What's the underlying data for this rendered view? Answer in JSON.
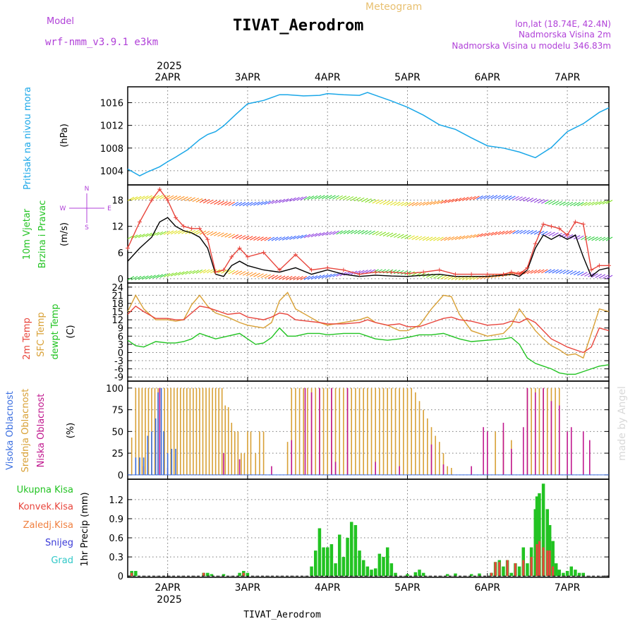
{
  "header": {
    "model_label": "Model",
    "model_name": "wrf-nmm_v3.9.1  e3km",
    "title": "TIVAT_Aerodrom",
    "subtitle": "Meteogram",
    "coords": "lon,lat (18.74E, 42.4N)",
    "elevation": "Nadmorska Visina 2m",
    "model_elevation": "Nadmorska Visina u modelu 346.83m",
    "footer_station": "TIVAT_Aerodrom",
    "watermark": "made by Angel"
  },
  "time_axis": {
    "year": "2025",
    "days": [
      "2APR",
      "3APR",
      "4APR",
      "5APR",
      "6APR",
      "7APR"
    ],
    "range_days": [
      -0.5,
      5.52
    ]
  },
  "colors": {
    "pressure": "#1aa7e8",
    "temp2m": "#e8453c",
    "sfc": "#d8a035",
    "dewpt": "#22c322",
    "precip_total": "#22c322",
    "precip_conv": "#e8453c",
    "cloud_high": "#3b6fe0",
    "cloud_mid": "#d8a035",
    "cloud_low": "#c0178e",
    "wind_speed": "#000000",
    "wind_gust": "#e8453c",
    "purple_text": "#b040d8",
    "meteogram_text": "#e8c070"
  },
  "chart_data": [
    {
      "id": "pressure",
      "type": "line",
      "ylabel_desc": "Pritisak na nivou mora",
      "ylabel_unit": "(hPa)",
      "yticks": [
        1004,
        1008,
        1012,
        1016
      ],
      "ylim": [
        1001.5,
        1018.8
      ],
      "x": [
        -0.5,
        -0.35,
        -0.25,
        -0.1,
        0,
        0.1,
        0.25,
        0.4,
        0.5,
        0.6,
        0.7,
        0.85,
        1,
        1.2,
        1.4,
        1.5,
        1.7,
        1.9,
        2,
        2.2,
        2.4,
        2.5,
        2.6,
        2.8,
        3,
        3.2,
        3.4,
        3.6,
        3.8,
        4,
        4.2,
        4.4,
        4.6,
        4.8,
        5,
        5.2,
        5.4,
        5.52
      ],
      "values": [
        1004.3,
        1003.1,
        1003.8,
        1004.7,
        1005.6,
        1006.4,
        1007.7,
        1009.5,
        1010.4,
        1010.9,
        1011.9,
        1013.9,
        1015.8,
        1016.4,
        1017.4,
        1017.4,
        1017.2,
        1017.3,
        1017.6,
        1017.4,
        1017.3,
        1017.8,
        1017.3,
        1016.3,
        1015.2,
        1013.8,
        1012.1,
        1011.3,
        1009.8,
        1008.4,
        1008,
        1007.3,
        1006.3,
        1008.1,
        1010.9,
        1012.3,
        1014.3,
        1015.1
      ]
    },
    {
      "id": "wind",
      "type": "line",
      "ylabel_desc1": "10m Vjetar",
      "ylabel_desc2": "Brzina i Pravac",
      "ylabel_unit": "(m/s)",
      "yticks": [
        0,
        6,
        12,
        18
      ],
      "ylim": [
        -1,
        21.5
      ],
      "compass": {
        "north": "N",
        "east": "E",
        "west": "W",
        "south": "S"
      },
      "x": [
        -0.5,
        -0.35,
        -0.2,
        -0.1,
        0,
        0.1,
        0.2,
        0.3,
        0.4,
        0.5,
        0.6,
        0.7,
        0.8,
        0.9,
        1,
        1.2,
        1.4,
        1.6,
        1.8,
        2,
        2.2,
        2.4,
        2.6,
        2.8,
        3,
        3.2,
        3.4,
        3.6,
        3.8,
        4,
        4.2,
        4.3,
        4.4,
        4.5,
        4.6,
        4.7,
        4.8,
        4.9,
        5,
        5.1,
        5.2,
        5.3,
        5.4,
        5.52
      ],
      "speed": [
        4,
        7,
        9.5,
        13,
        14,
        12,
        11,
        10.5,
        9.5,
        7,
        1,
        0.5,
        3,
        4,
        3,
        2,
        1.5,
        2.5,
        1,
        2,
        1,
        0.5,
        0.8,
        0.6,
        0.5,
        0.8,
        1,
        0.5,
        0.5,
        0.5,
        0.8,
        1,
        0.5,
        2,
        7,
        10,
        9,
        10,
        9,
        10,
        5,
        0.5,
        2,
        2.5
      ],
      "gust": [
        7,
        13,
        18,
        20.5,
        18,
        14,
        12,
        11.5,
        11.5,
        9,
        1.5,
        2,
        5,
        7,
        5,
        6,
        2,
        5.5,
        2,
        2.5,
        2,
        1,
        1.5,
        1.5,
        1.2,
        1.5,
        2,
        1,
        1,
        1,
        1,
        1.5,
        1,
        2.5,
        8,
        12.5,
        12,
        11.5,
        10,
        13,
        12.5,
        2,
        3,
        3
      ]
    },
    {
      "id": "temperature",
      "type": "line",
      "ylabel_t2m": "2m Temp",
      "ylabel_sfc": "SFC Temp",
      "ylabel_dew": "dewpt Temp",
      "ylabel_unit": "(C)",
      "yticks": [
        -9,
        -6,
        -3,
        0,
        3,
        6,
        9,
        12,
        15,
        18,
        21,
        24
      ],
      "ylim": [
        -10.5,
        25.5
      ],
      "x": [
        -0.5,
        -0.4,
        -0.3,
        -0.15,
        0,
        0.1,
        0.2,
        0.3,
        0.4,
        0.5,
        0.6,
        0.75,
        0.9,
        1,
        1.1,
        1.2,
        1.3,
        1.4,
        1.5,
        1.6,
        1.75,
        1.9,
        2,
        2.2,
        2.4,
        2.5,
        2.6,
        2.75,
        2.9,
        3,
        3.15,
        3.3,
        3.45,
        3.55,
        3.65,
        3.8,
        4,
        4.2,
        4.3,
        4.4,
        4.5,
        4.6,
        4.7,
        4.8,
        4.9,
        5,
        5.1,
        5.2,
        5.3,
        5.4,
        5.52
      ],
      "t2m": [
        14,
        17,
        15,
        12.5,
        12.5,
        12,
        12,
        14.5,
        17,
        16.5,
        15.5,
        14,
        14.5,
        13,
        12.5,
        12,
        13,
        14.5,
        14,
        12,
        11.5,
        11,
        10.5,
        10.5,
        11,
        12,
        11,
        10,
        10.5,
        9.5,
        9.5,
        11,
        12.5,
        13,
        12,
        11.5,
        10,
        10.5,
        11.5,
        11,
        12.5,
        11,
        8,
        5,
        3.5,
        2,
        1,
        0,
        2,
        9,
        8
      ],
      "sfc": [
        15,
        21,
        16,
        12,
        12,
        11.5,
        12,
        17.5,
        21,
        17,
        14.5,
        13,
        11,
        10,
        9.5,
        9,
        11,
        19,
        22,
        16,
        13.5,
        11,
        10,
        11,
        12,
        13,
        11,
        10,
        8,
        8,
        10,
        16,
        21,
        20.5,
        14,
        8,
        6,
        7,
        10,
        16,
        12,
        8,
        5,
        2.5,
        1,
        -1,
        -0.5,
        -2,
        7,
        16,
        15
      ],
      "dewpt": [
        4.5,
        2.5,
        2,
        4,
        3.5,
        3.5,
        4,
        5,
        7,
        6,
        5,
        6,
        7,
        5,
        3,
        3.5,
        5.5,
        9,
        6,
        6,
        7,
        7,
        6.5,
        7,
        7,
        6,
        5,
        4.5,
        5,
        5.5,
        6.5,
        6.5,
        7,
        6,
        5,
        4,
        4.5,
        5,
        5.5,
        3,
        -2,
        -4,
        -5,
        -6,
        -7.5,
        -8,
        -8,
        -7,
        -6,
        -5,
        -4.5
      ]
    },
    {
      "id": "clouds",
      "type": "bar",
      "ylabel_high": "Visoka Oblacnost",
      "ylabel_mid": "Srednja Oblacnost",
      "ylabel_low": "Niska Oblacnost",
      "ylabel_unit": "(%)",
      "yticks": [
        0,
        25,
        50,
        75,
        100
      ],
      "ylim": [
        -5,
        108
      ],
      "mid_bars": [
        [
          -0.45,
          43
        ],
        [
          -0.4,
          100
        ],
        [
          -0.36,
          100
        ],
        [
          -0.32,
          100
        ],
        [
          -0.28,
          100
        ],
        [
          -0.24,
          100
        ],
        [
          -0.2,
          100
        ],
        [
          -0.16,
          100
        ],
        [
          -0.12,
          100
        ],
        [
          -0.08,
          100
        ],
        [
          -0.04,
          100
        ],
        [
          0,
          100
        ],
        [
          0.04,
          100
        ],
        [
          0.08,
          100
        ],
        [
          0.12,
          100
        ],
        [
          0.16,
          100
        ],
        [
          0.2,
          100
        ],
        [
          0.24,
          100
        ],
        [
          0.28,
          100
        ],
        [
          0.32,
          100
        ],
        [
          0.36,
          100
        ],
        [
          0.4,
          100
        ],
        [
          0.44,
          100
        ],
        [
          0.48,
          100
        ],
        [
          0.52,
          100
        ],
        [
          0.56,
          100
        ],
        [
          0.6,
          100
        ],
        [
          0.64,
          100
        ],
        [
          0.68,
          100
        ],
        [
          0.72,
          80
        ],
        [
          0.76,
          78
        ],
        [
          0.8,
          60
        ],
        [
          0.84,
          50
        ],
        [
          0.88,
          50
        ],
        [
          0.92,
          25
        ],
        [
          0.96,
          25
        ],
        [
          1,
          50
        ],
        [
          1.04,
          50
        ],
        [
          1.1,
          25
        ],
        [
          1.15,
          50
        ],
        [
          1.2,
          50
        ],
        [
          1.5,
          38
        ],
        [
          1.55,
          100
        ],
        [
          1.6,
          100
        ],
        [
          1.65,
          100
        ],
        [
          1.7,
          100
        ],
        [
          1.75,
          100
        ],
        [
          1.8,
          100
        ],
        [
          1.85,
          100
        ],
        [
          1.9,
          100
        ],
        [
          1.95,
          100
        ],
        [
          2,
          100
        ],
        [
          2.05,
          100
        ],
        [
          2.1,
          100
        ],
        [
          2.15,
          100
        ],
        [
          2.2,
          100
        ],
        [
          2.25,
          100
        ],
        [
          2.3,
          100
        ],
        [
          2.35,
          100
        ],
        [
          2.4,
          100
        ],
        [
          2.45,
          100
        ],
        [
          2.5,
          100
        ],
        [
          2.55,
          100
        ],
        [
          2.6,
          100
        ],
        [
          2.65,
          100
        ],
        [
          2.7,
          100
        ],
        [
          2.75,
          100
        ],
        [
          2.8,
          100
        ],
        [
          2.85,
          100
        ],
        [
          2.9,
          100
        ],
        [
          2.95,
          100
        ],
        [
          3,
          100
        ],
        [
          3.05,
          100
        ],
        [
          3.1,
          95
        ],
        [
          3.15,
          85
        ],
        [
          3.2,
          75
        ],
        [
          3.25,
          65
        ],
        [
          3.3,
          55
        ],
        [
          3.35,
          45
        ],
        [
          3.4,
          38
        ],
        [
          3.45,
          25
        ],
        [
          3.5,
          10
        ],
        [
          3.55,
          8
        ],
        [
          4.1,
          50
        ],
        [
          4.2,
          50
        ],
        [
          4.3,
          40
        ],
        [
          4.5,
          100
        ],
        [
          4.55,
          100
        ],
        [
          4.6,
          100
        ],
        [
          4.65,
          100
        ],
        [
          4.7,
          100
        ],
        [
          4.75,
          100
        ],
        [
          4.8,
          100
        ],
        [
          4.85,
          100
        ],
        [
          4.9,
          100
        ]
      ],
      "low_bars": [
        [
          -0.3,
          10
        ],
        [
          -0.1,
          100
        ],
        [
          0,
          8
        ],
        [
          0.7,
          25
        ],
        [
          0.9,
          18
        ],
        [
          1.3,
          10
        ],
        [
          1.55,
          40
        ],
        [
          1.72,
          100
        ],
        [
          1.8,
          95
        ],
        [
          1.9,
          100
        ],
        [
          2.05,
          100
        ],
        [
          2.1,
          15
        ],
        [
          2.25,
          100
        ],
        [
          2.6,
          15
        ],
        [
          2.9,
          10
        ],
        [
          3.3,
          35
        ],
        [
          3.45,
          12
        ],
        [
          3.8,
          10
        ],
        [
          3.95,
          55
        ],
        [
          4,
          50
        ],
        [
          4.2,
          60
        ],
        [
          4.3,
          30
        ],
        [
          4.45,
          55
        ],
        [
          4.5,
          100
        ],
        [
          4.6,
          95
        ],
        [
          4.7,
          100
        ],
        [
          4.8,
          85
        ],
        [
          4.9,
          80
        ],
        [
          5,
          50
        ],
        [
          5.05,
          55
        ],
        [
          5.2,
          50
        ],
        [
          5.28,
          40
        ]
      ],
      "high_bars": [
        [
          -0.4,
          20
        ],
        [
          -0.35,
          20
        ],
        [
          -0.3,
          20
        ],
        [
          -0.25,
          45
        ],
        [
          -0.2,
          50
        ],
        [
          -0.15,
          65
        ],
        [
          -0.12,
          95
        ],
        [
          -0.08,
          100
        ],
        [
          -0.05,
          50
        ],
        [
          0,
          25
        ],
        [
          0.05,
          30
        ],
        [
          0.1,
          30
        ]
      ]
    },
    {
      "id": "precip",
      "type": "bar",
      "legend_total": "Ukupna Kisa",
      "legend_conv": "Konvek.Kisa",
      "legend_frozen": "Zaledj.Kisa",
      "legend_snow": "Snijeg",
      "legend_hail": "Grad",
      "ylabel": "1hr Precip (mm)",
      "yticks": [
        0,
        0.3,
        0.6,
        0.9,
        1.2
      ],
      "ylim": [
        -0.02,
        1.52
      ],
      "total": [
        [
          -0.45,
          0.08
        ],
        [
          -0.4,
          0.08
        ],
        [
          0.45,
          0.05
        ],
        [
          0.5,
          0.05
        ],
        [
          0.55,
          0.03
        ],
        [
          0.7,
          0.03
        ],
        [
          0.9,
          0.05
        ],
        [
          0.95,
          0.08
        ],
        [
          1,
          0.05
        ],
        [
          1.8,
          0.15
        ],
        [
          1.85,
          0.4
        ],
        [
          1.9,
          0.75
        ],
        [
          1.95,
          0.45
        ],
        [
          2,
          0.45
        ],
        [
          2.05,
          0.5
        ],
        [
          2.1,
          0.2
        ],
        [
          2.15,
          0.65
        ],
        [
          2.2,
          0.3
        ],
        [
          2.25,
          0.6
        ],
        [
          2.3,
          0.85
        ],
        [
          2.35,
          0.8
        ],
        [
          2.4,
          0.4
        ],
        [
          2.45,
          0.25
        ],
        [
          2.5,
          0.15
        ],
        [
          2.55,
          0.1
        ],
        [
          2.6,
          0.12
        ],
        [
          2.65,
          0.35
        ],
        [
          2.7,
          0.3
        ],
        [
          2.75,
          0.45
        ],
        [
          2.8,
          0.2
        ],
        [
          2.85,
          0.05
        ],
        [
          3,
          0.03
        ],
        [
          3.1,
          0.06
        ],
        [
          3.15,
          0.1
        ],
        [
          3.2,
          0.05
        ],
        [
          3.5,
          0.03
        ],
        [
          3.6,
          0.04
        ],
        [
          3.8,
          0.03
        ],
        [
          3.9,
          0.04
        ],
        [
          4.05,
          0.05
        ],
        [
          4.1,
          0.22
        ],
        [
          4.15,
          0.25
        ],
        [
          4.2,
          0.15
        ],
        [
          4.25,
          0.25
        ],
        [
          4.3,
          0.05
        ],
        [
          4.35,
          0.2
        ],
        [
          4.4,
          0.15
        ],
        [
          4.45,
          0.45
        ],
        [
          4.5,
          0.2
        ],
        [
          4.55,
          0.45
        ],
        [
          4.6,
          1.05
        ],
        [
          4.62,
          1.25
        ],
        [
          4.65,
          1.3
        ],
        [
          4.7,
          1.45
        ],
        [
          4.75,
          1.05
        ],
        [
          4.78,
          0.8
        ],
        [
          4.82,
          0.55
        ],
        [
          4.86,
          0.2
        ],
        [
          4.9,
          0.1
        ],
        [
          4.95,
          0.05
        ],
        [
          5,
          0.08
        ],
        [
          5.05,
          0.15
        ],
        [
          5.1,
          0.1
        ],
        [
          5.15,
          0.05
        ],
        [
          5.2,
          0.05
        ]
      ],
      "convective": [
        [
          -0.45,
          0.05
        ],
        [
          0.45,
          0.05
        ],
        [
          0.95,
          0.05
        ],
        [
          4.05,
          0.05
        ],
        [
          4.1,
          0.22
        ],
        [
          4.15,
          0.22
        ],
        [
          4.25,
          0.25
        ],
        [
          4.35,
          0.2
        ],
        [
          4.45,
          0.25
        ],
        [
          4.55,
          0.3
        ],
        [
          4.62,
          0.5
        ],
        [
          4.65,
          0.55
        ],
        [
          4.7,
          0.45
        ],
        [
          4.75,
          0.4
        ],
        [
          4.78,
          0.4
        ],
        [
          4.82,
          0.15
        ]
      ]
    }
  ]
}
